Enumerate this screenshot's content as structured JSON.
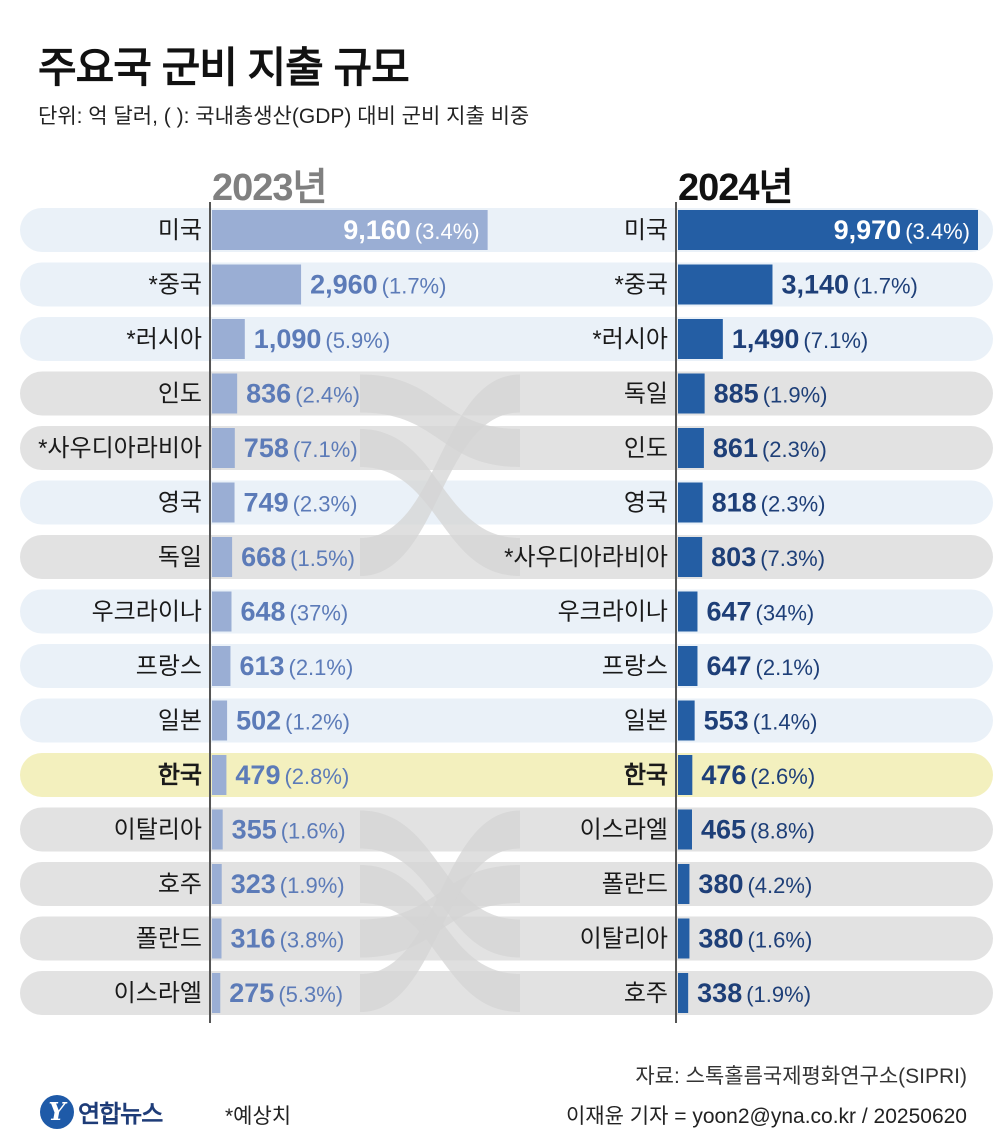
{
  "header": {
    "title": "주요국 군비 지출 규모",
    "subtitle": "단위: 억 달러, (  ): 국내총생산(GDP) 대비 군비 지출 비중"
  },
  "colors": {
    "bar_2023": "#9aaed4",
    "bar_2024": "#245ea4",
    "text_2023": "#5c7bb8",
    "text_2024": "#1e3f78",
    "row_blue": "#eaf1f8",
    "row_gray": "#e2e2e2",
    "row_highlight": "#f3f0be",
    "swap_band": "#d4d4d4"
  },
  "chart_data": {
    "type": "bar",
    "title": "주요국 군비 지출 규모",
    "unit": "억 달러",
    "max_value": 9970,
    "series": [
      {
        "name": "2023년",
        "rows": [
          {
            "country": "미국",
            "value": 9160,
            "value_label": "9,160",
            "gdp": "(3.4%)",
            "row": "blue"
          },
          {
            "country": "*중국",
            "value": 2960,
            "value_label": "2,960",
            "gdp": "(1.7%)",
            "row": "blue"
          },
          {
            "country": "*러시아",
            "value": 1090,
            "value_label": "1,090",
            "gdp": "(5.9%)",
            "row": "blue"
          },
          {
            "country": "인도",
            "value": 836,
            "value_label": "836",
            "gdp": "(2.4%)",
            "row": "gray"
          },
          {
            "country": "*사우디아라비아",
            "value": 758,
            "value_label": "758",
            "gdp": "(7.1%)",
            "row": "gray"
          },
          {
            "country": "영국",
            "value": 749,
            "value_label": "749",
            "gdp": "(2.3%)",
            "row": "blue"
          },
          {
            "country": "독일",
            "value": 668,
            "value_label": "668",
            "gdp": "(1.5%)",
            "row": "gray"
          },
          {
            "country": "우크라이나",
            "value": 648,
            "value_label": "648",
            "gdp": "(37%)",
            "row": "blue"
          },
          {
            "country": "프랑스",
            "value": 613,
            "value_label": "613",
            "gdp": "(2.1%)",
            "row": "blue"
          },
          {
            "country": "일본",
            "value": 502,
            "value_label": "502",
            "gdp": "(1.2%)",
            "row": "blue"
          },
          {
            "country": "한국",
            "value": 479,
            "value_label": "479",
            "gdp": "(2.8%)",
            "row": "highlight"
          },
          {
            "country": "이탈리아",
            "value": 355,
            "value_label": "355",
            "gdp": "(1.6%)",
            "row": "gray"
          },
          {
            "country": "호주",
            "value": 323,
            "value_label": "323",
            "gdp": "(1.9%)",
            "row": "gray"
          },
          {
            "country": "폴란드",
            "value": 316,
            "value_label": "316",
            "gdp": "(3.8%)",
            "row": "gray"
          },
          {
            "country": "이스라엘",
            "value": 275,
            "value_label": "275",
            "gdp": "(5.3%)",
            "row": "gray"
          }
        ]
      },
      {
        "name": "2024년",
        "rows": [
          {
            "country": "미국",
            "value": 9970,
            "value_label": "9,970",
            "gdp": "(3.4%)",
            "row": "blue"
          },
          {
            "country": "*중국",
            "value": 3140,
            "value_label": "3,140",
            "gdp": "(1.7%)",
            "row": "blue"
          },
          {
            "country": "*러시아",
            "value": 1490,
            "value_label": "1,490",
            "gdp": "(7.1%)",
            "row": "blue"
          },
          {
            "country": "독일",
            "value": 885,
            "value_label": "885",
            "gdp": "(1.9%)",
            "row": "gray"
          },
          {
            "country": "인도",
            "value": 861,
            "value_label": "861",
            "gdp": "(2.3%)",
            "row": "gray"
          },
          {
            "country": "영국",
            "value": 818,
            "value_label": "818",
            "gdp": "(2.3%)",
            "row": "blue"
          },
          {
            "country": "*사우디아라비아",
            "value": 803,
            "value_label": "803",
            "gdp": "(7.3%)",
            "row": "gray"
          },
          {
            "country": "우크라이나",
            "value": 647,
            "value_label": "647",
            "gdp": "(34%)",
            "row": "blue"
          },
          {
            "country": "프랑스",
            "value": 647,
            "value_label": "647",
            "gdp": "(2.1%)",
            "row": "blue"
          },
          {
            "country": "일본",
            "value": 553,
            "value_label": "553",
            "gdp": "(1.4%)",
            "row": "blue"
          },
          {
            "country": "한국",
            "value": 476,
            "value_label": "476",
            "gdp": "(2.6%)",
            "row": "highlight"
          },
          {
            "country": "이스라엘",
            "value": 465,
            "value_label": "465",
            "gdp": "(8.8%)",
            "row": "gray"
          },
          {
            "country": "폴란드",
            "value": 380,
            "value_label": "380",
            "gdp": "(4.2%)",
            "row": "gray"
          },
          {
            "country": "이탈리아",
            "value": 380,
            "value_label": "380",
            "gdp": "(1.6%)",
            "row": "gray"
          },
          {
            "country": "호주",
            "value": 338,
            "value_label": "338",
            "gdp": "(1.9%)",
            "row": "gray"
          }
        ]
      }
    ],
    "rank_changes": [
      {
        "from_2023": "인도",
        "to_2024_rank": 5
      },
      {
        "from_2023": "*사우디아라비아",
        "to_2024_rank": 7
      },
      {
        "from_2023": "독일",
        "to_2024_rank": 4
      },
      {
        "from_2023": "이탈리아",
        "to_2024_rank": 14
      },
      {
        "from_2023": "호주",
        "to_2024_rank": 15
      },
      {
        "from_2023": "폴란드",
        "to_2024_rank": 13
      },
      {
        "from_2023": "이스라엘",
        "to_2024_rank": 12
      }
    ]
  },
  "footer": {
    "source": "자료: 스톡홀름국제평화연구소(SIPRI)",
    "credit": "이재윤 기자 = yoon2@yna.co.kr / 20250620",
    "note": "*예상치",
    "logo_text": "연합뉴스",
    "logo_mark": "Y"
  }
}
